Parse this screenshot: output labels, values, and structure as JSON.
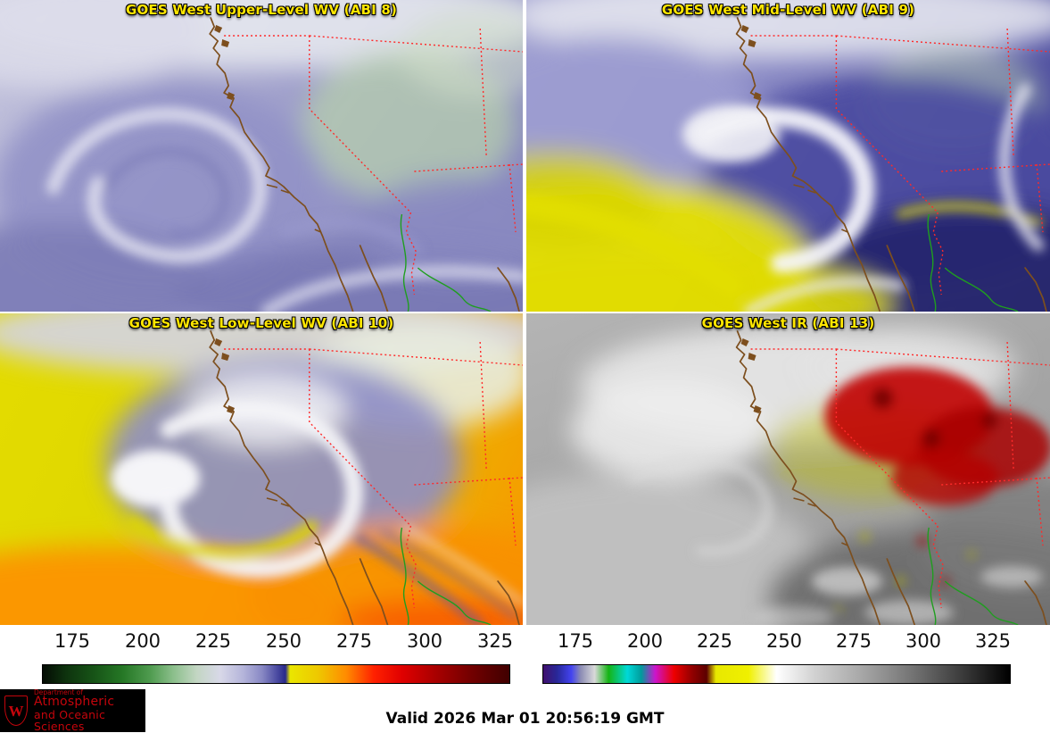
{
  "panels": [
    {
      "title": "GOES West Upper-Level WV (ABI 8)"
    },
    {
      "title": "GOES West Mid-Level WV (ABI 9)"
    },
    {
      "title": "GOES West Low-Level WV (ABI 10)"
    },
    {
      "title": "GOES West IR (ABI 13)"
    }
  ],
  "colorbar_ticks": [
    "175",
    "200",
    "225",
    "250",
    "275",
    "300",
    "325"
  ],
  "colorbars": {
    "wv_stops": [
      "#040c04 0%",
      "#0e330e 5%",
      "#175417 11%",
      "#257725 17%",
      "#4f9b4f 23%",
      "#8cbf8c 28%",
      "#c3d6c3 33%",
      "#d8d8e8 38%",
      "#b4b4da 43%",
      "#8888c4 47%",
      "#4f4fa4 50%",
      "#28288a 52%",
      "#eae600 53%",
      "#eec800 59%",
      "#ff8c00 65%",
      "#ff2000 71%",
      "#e00000 77%",
      "#aa0000 84%",
      "#780000 91%",
      "#400000 100%"
    ],
    "ir_stops": [
      "#40106e 0%",
      "#282899 3%",
      "#4343f0 6%",
      "#8c8cb4 8%",
      "#d9d9d9 11%",
      "#14b414 14%",
      "#00d8d8 18%",
      "#009c9c 21%",
      "#cc14cc 24%",
      "#ee0000 28%",
      "#900000 32%",
      "#5c0000 35%",
      "#e8e800 37%",
      "#f0f000 44%",
      "#ffffff 50%",
      "#d2d2d2 58%",
      "#a8a8a8 68%",
      "#747474 79%",
      "#3a3a3a 90%",
      "#000000 100%"
    ]
  },
  "colors": {
    "panel_title": "#ffe600",
    "state_border_red": "#ff2a2a",
    "coastline_brown": "#7d4f1e",
    "river_green": "#1f9e1f",
    "uw_red": "#c5050c"
  },
  "footer": {
    "valid_time": "Valid 2026 Mar 01 20:56:19 GMT",
    "logo": {
      "crest": "W",
      "dept": "Department of",
      "line1": "Atmospheric",
      "line2": "and Oceanic Sciences"
    }
  }
}
